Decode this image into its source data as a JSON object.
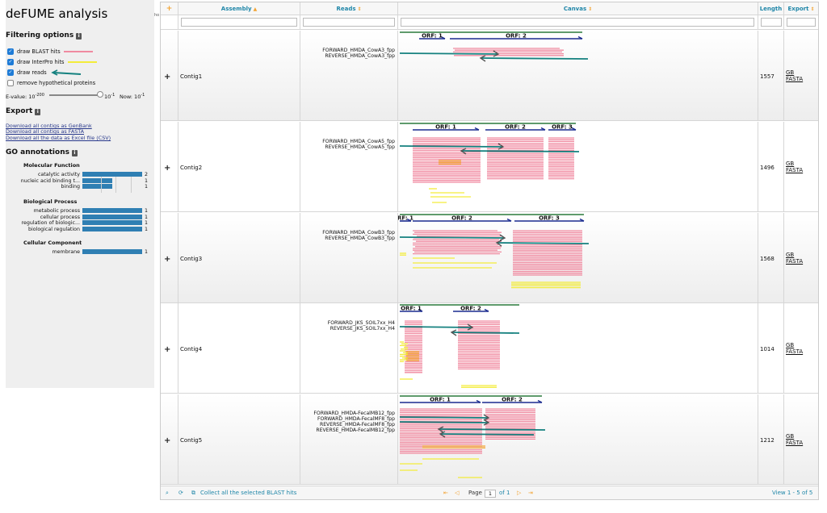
{
  "app": {
    "title": "deFUME analysis"
  },
  "filtering": {
    "heading": "Filtering options",
    "options": [
      {
        "label": "draw BLAST hits",
        "checked": true,
        "legend_color": "#f08aa0"
      },
      {
        "label": "draw InterPro hits",
        "checked": true,
        "legend_color": "#f3ec3a"
      },
      {
        "label": "draw reads",
        "checked": true,
        "legend_color": "#15817f"
      },
      {
        "label": "remove hypothetical proteins",
        "checked": false
      }
    ],
    "evalue": {
      "label": "E-value: 10",
      "min_exp": "-200",
      "max_text": "10",
      "max_exp": "-1",
      "now_label": "Now: 10",
      "now_exp": "-1",
      "level": 0.93
    }
  },
  "export": {
    "heading": "Export",
    "links": [
      "Download all contigs as GenBank",
      "Download all contigs as FASTA",
      "Download all the data as Excel file (CSV)"
    ]
  },
  "go": {
    "heading": "GO annotations",
    "groups": [
      {
        "title": "Molecular Function",
        "max": 2,
        "items": [
          {
            "label": "catalytic activity",
            "count": 2
          },
          {
            "label": "nucleic acid binding t...",
            "count": 1
          },
          {
            "label": "binding",
            "count": 1
          }
        ]
      },
      {
        "title": "Biological Process",
        "max": 1,
        "items": [
          {
            "label": "metabolic process",
            "count": 1
          },
          {
            "label": "cellular process",
            "count": 1
          },
          {
            "label": "regulation of biologic...",
            "count": 1
          },
          {
            "label": "biological regulation",
            "count": 1
          }
        ]
      },
      {
        "title": "Cellular Component",
        "max": 1,
        "items": [
          {
            "label": "membrane",
            "count": 1
          }
        ]
      }
    ]
  },
  "grid": {
    "expand_symbol": "+",
    "columns": {
      "assembly": "Assembly",
      "reads": "Reads",
      "canvas": "Canvas",
      "length": "Length",
      "export": "Export"
    },
    "rows": [
      {
        "contig": "Contig1",
        "length": "1557",
        "reads": [
          "FORWARD_HMDA_CowA3_fpp",
          "REVERSE_HMDA_CowA3_fpp"
        ],
        "orfs": [
          "ORF: 1",
          "ORF: 2"
        ],
        "export": [
          "GB",
          "FASTA"
        ]
      },
      {
        "contig": "Contig2",
        "length": "1496",
        "reads": [
          "FORWARD_HMDA_CowA5_fpp",
          "REVERSE_HMDA_CowA5_fpp"
        ],
        "orfs": [
          "ORF: 1",
          "ORF: 2",
          "ORF: 3"
        ],
        "export": [
          "GB",
          "FASTA"
        ]
      },
      {
        "contig": "Contig3",
        "length": "1568",
        "reads": [
          "FORWARD_HMDA_CowB3_fpp",
          "REVERSE_HMDA_CowB3_fpp"
        ],
        "orfs": [
          "RF: 1",
          "ORF: 2",
          "ORF: 3"
        ],
        "export": [
          "GB",
          "FASTA"
        ]
      },
      {
        "contig": "Contig4",
        "length": "1014",
        "reads": [
          "FORWARD_JKS_SOIL7xx_H4",
          "REVERSE_JKS_SOIL7xx_H4"
        ],
        "orfs": [
          "ORF: 1",
          "ORF: 2"
        ],
        "export": [
          "GB",
          "FASTA"
        ]
      },
      {
        "contig": "Contig5",
        "length": "1212",
        "reads": [
          "FORWARD_HMDA-FecalMB12_fpp",
          "FORWARD_HMDA-FecalMF8_fpp",
          "REVERSE_HMDA-FecalMF8_fpp",
          "REVERSE_HMDA-FecalMB12_fpp"
        ],
        "orfs": [
          "ORF: 1",
          "ORF: 2"
        ],
        "export": [
          "GB",
          "FASTA"
        ]
      }
    ]
  },
  "pager": {
    "collect_label": "Collect all the selected BLAST hits",
    "page_label": "Page",
    "page_value": "1",
    "of_label": "of 1",
    "view_label": "View 1 - 5 of 5"
  },
  "colors": {
    "accent": "#1f86a8",
    "orf": "#1a2b8f",
    "contig_line": "#2a7a3b",
    "read": "#15817f",
    "blast": "#f08aa0",
    "interpro": "#f3ec3a",
    "orange": "#f2a230"
  }
}
